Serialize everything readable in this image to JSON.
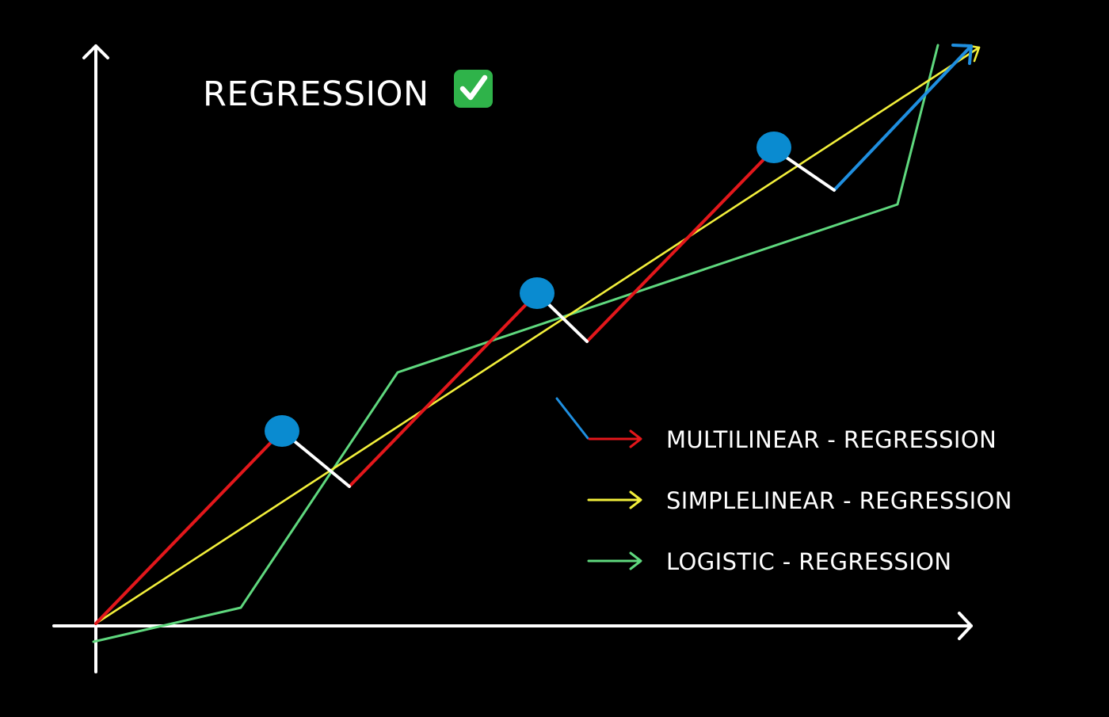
{
  "title": "REGRESSION",
  "title_badge_icon": "check-mark-button-icon",
  "legend": [
    {
      "label": "MULTILINEAR - REGRESSION",
      "color": "#e3171b",
      "secondary_color": "#1f8fe0"
    },
    {
      "label": "SIMPLELINEAR - REGRESSION",
      "color": "#f2ef3b"
    },
    {
      "label": "LOGISTIC - REGRESSION",
      "color": "#5fd87e"
    }
  ],
  "colors": {
    "background": "#000000",
    "axes": "#ffffff",
    "multilinear": "#e3171b",
    "multilinear_final": "#1f8fe0",
    "residual": "#ffffff",
    "simplelinear": "#f2ef3b",
    "logistic": "#5fd87e",
    "points": "#0a8bd0",
    "badge": "#2fb34a"
  }
}
